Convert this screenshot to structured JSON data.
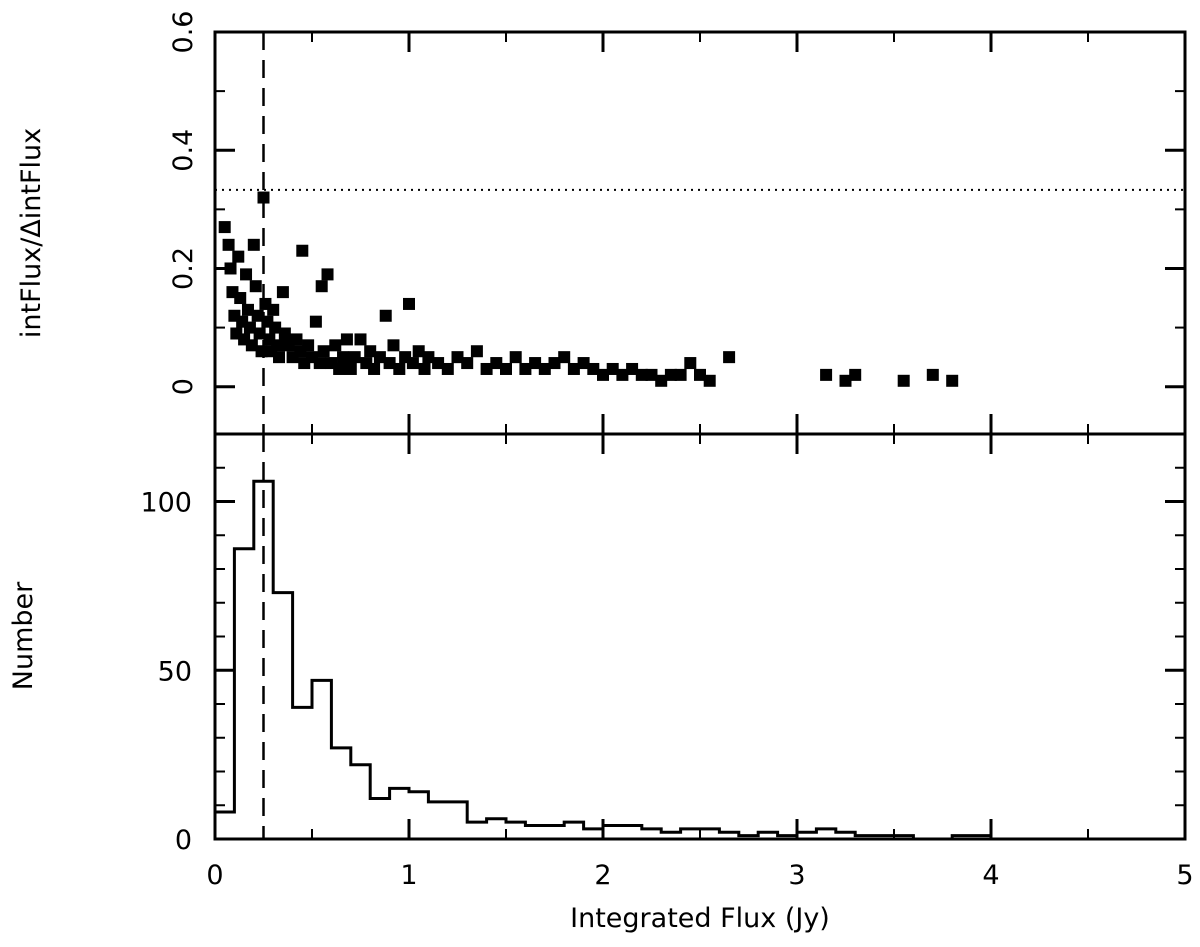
{
  "chart_data": [
    {
      "type": "scatter",
      "ylabel": "intFlux/ΔintFlux",
      "xlim": [
        0,
        5
      ],
      "ylim": [
        -0.08,
        0.6
      ],
      "yticks": [
        0,
        0.2,
        0.4,
        0.6
      ],
      "ytick_labels": [
        "0",
        "0.2",
        "0.4",
        "0.6"
      ],
      "reference_lines": [
        {
          "orientation": "horizontal",
          "style": "dotted",
          "value": 0.333
        },
        {
          "orientation": "vertical",
          "style": "dashed",
          "value": 0.25
        }
      ],
      "points": [
        [
          0.05,
          0.27
        ],
        [
          0.07,
          0.24
        ],
        [
          0.08,
          0.2
        ],
        [
          0.09,
          0.16
        ],
        [
          0.1,
          0.12
        ],
        [
          0.11,
          0.09
        ],
        [
          0.12,
          0.22
        ],
        [
          0.13,
          0.15
        ],
        [
          0.14,
          0.11
        ],
        [
          0.15,
          0.08
        ],
        [
          0.16,
          0.19
        ],
        [
          0.17,
          0.13
        ],
        [
          0.18,
          0.1
        ],
        [
          0.19,
          0.07
        ],
        [
          0.2,
          0.24
        ],
        [
          0.21,
          0.17
        ],
        [
          0.22,
          0.12
        ],
        [
          0.23,
          0.09
        ],
        [
          0.24,
          0.06
        ],
        [
          0.25,
          0.32
        ],
        [
          0.26,
          0.14
        ],
        [
          0.27,
          0.11
        ],
        [
          0.28,
          0.08
        ],
        [
          0.29,
          0.06
        ],
        [
          0.3,
          0.13
        ],
        [
          0.31,
          0.1
        ],
        [
          0.32,
          0.07
        ],
        [
          0.33,
          0.05
        ],
        [
          0.35,
          0.16
        ],
        [
          0.36,
          0.09
        ],
        [
          0.38,
          0.07
        ],
        [
          0.4,
          0.05
        ],
        [
          0.42,
          0.08
        ],
        [
          0.44,
          0.06
        ],
        [
          0.45,
          0.23
        ],
        [
          0.46,
          0.04
        ],
        [
          0.48,
          0.07
        ],
        [
          0.5,
          0.05
        ],
        [
          0.52,
          0.11
        ],
        [
          0.54,
          0.04
        ],
        [
          0.55,
          0.17
        ],
        [
          0.56,
          0.06
        ],
        [
          0.58,
          0.19
        ],
        [
          0.6,
          0.04
        ],
        [
          0.62,
          0.07
        ],
        [
          0.64,
          0.03
        ],
        [
          0.66,
          0.05
        ],
        [
          0.68,
          0.08
        ],
        [
          0.7,
          0.03
        ],
        [
          0.72,
          0.05
        ],
        [
          0.75,
          0.08
        ],
        [
          0.78,
          0.04
        ],
        [
          0.8,
          0.06
        ],
        [
          0.82,
          0.03
        ],
        [
          0.85,
          0.05
        ],
        [
          0.88,
          0.12
        ],
        [
          0.9,
          0.04
        ],
        [
          0.92,
          0.07
        ],
        [
          0.95,
          0.03
        ],
        [
          0.98,
          0.05
        ],
        [
          1.0,
          0.14
        ],
        [
          1.02,
          0.04
        ],
        [
          1.05,
          0.06
        ],
        [
          1.08,
          0.03
        ],
        [
          1.1,
          0.05
        ],
        [
          1.15,
          0.04
        ],
        [
          1.2,
          0.03
        ],
        [
          1.25,
          0.05
        ],
        [
          1.3,
          0.04
        ],
        [
          1.35,
          0.06
        ],
        [
          1.4,
          0.03
        ],
        [
          1.45,
          0.04
        ],
        [
          1.5,
          0.03
        ],
        [
          1.55,
          0.05
        ],
        [
          1.6,
          0.03
        ],
        [
          1.65,
          0.04
        ],
        [
          1.7,
          0.03
        ],
        [
          1.75,
          0.04
        ],
        [
          1.8,
          0.05
        ],
        [
          1.85,
          0.03
        ],
        [
          1.9,
          0.04
        ],
        [
          1.95,
          0.03
        ],
        [
          2.0,
          0.02
        ],
        [
          2.05,
          0.03
        ],
        [
          2.1,
          0.02
        ],
        [
          2.15,
          0.03
        ],
        [
          2.2,
          0.02
        ],
        [
          2.25,
          0.02
        ],
        [
          2.3,
          0.01
        ],
        [
          2.35,
          0.02
        ],
        [
          2.4,
          0.02
        ],
        [
          2.45,
          0.04
        ],
        [
          2.5,
          0.02
        ],
        [
          2.55,
          0.01
        ],
        [
          2.65,
          0.05
        ],
        [
          3.15,
          0.02
        ],
        [
          3.25,
          0.01
        ],
        [
          3.3,
          0.02
        ],
        [
          3.55,
          0.01
        ],
        [
          3.7,
          0.02
        ],
        [
          3.8,
          0.01
        ]
      ]
    },
    {
      "type": "histogram",
      "ylabel": "Number",
      "xlabel": "Integrated Flux (Jy)",
      "xlim": [
        0,
        5
      ],
      "ylim": [
        0,
        120
      ],
      "xticks": [
        0,
        1,
        2,
        3,
        4,
        5
      ],
      "xtick_labels": [
        "0",
        "1",
        "2",
        "3",
        "4",
        "5"
      ],
      "yticks": [
        0,
        50,
        100
      ],
      "ytick_labels": [
        "0",
        "50",
        "100"
      ],
      "bin_width": 0.1,
      "bin_start": 0,
      "counts": [
        8,
        86,
        106,
        73,
        39,
        47,
        27,
        22,
        12,
        15,
        14,
        11,
        11,
        5,
        6,
        5,
        4,
        4,
        5,
        3,
        4,
        4,
        3,
        2,
        3,
        3,
        2,
        1,
        2,
        1,
        2,
        3,
        2,
        1,
        1,
        1,
        0,
        0,
        1,
        1
      ]
    }
  ]
}
